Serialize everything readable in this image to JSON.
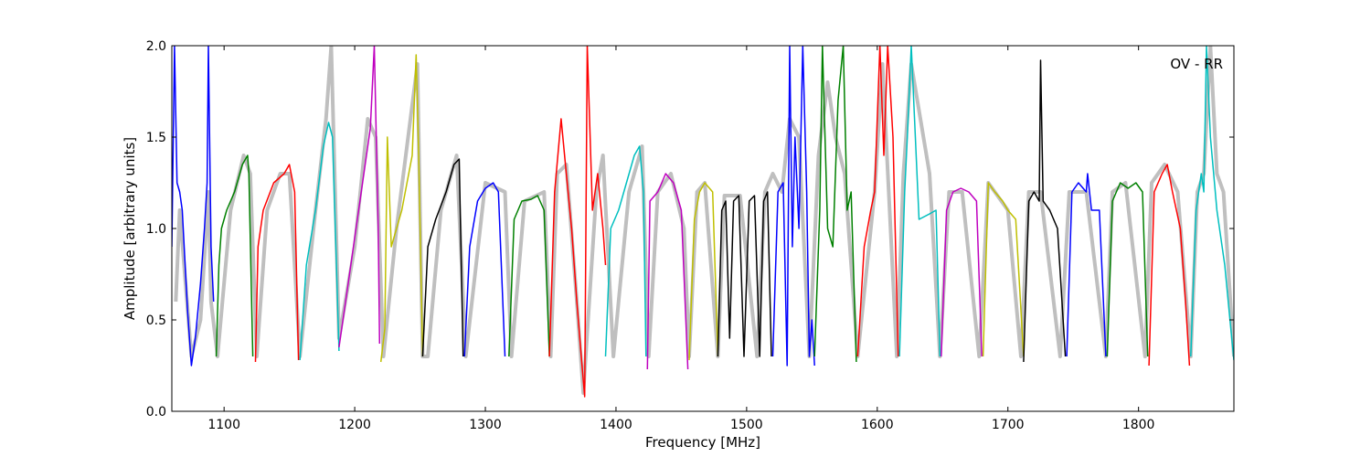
{
  "chart_data": {
    "type": "line",
    "title": "",
    "xlabel": "Frequency [MHz]",
    "ylabel": "Amplitude [arbitrary units]",
    "annotation": "OV - RR",
    "annotation_position": "top-right",
    "xlim": [
      1060,
      1873
    ],
    "ylim": [
      0.0,
      2.0
    ],
    "xticks": [
      1100,
      1200,
      1300,
      1400,
      1500,
      1600,
      1700,
      1800
    ],
    "yticks": [
      0.0,
      0.5,
      1.0,
      1.5,
      2.0
    ],
    "ytick_labels": [
      "0.0",
      "0.5",
      "1.0",
      "1.5",
      "2.0"
    ],
    "grid": false,
    "legend": "none",
    "background_series": {
      "color": "#bfbfbf",
      "x": [
        1063,
        1066,
        1075,
        1082,
        1088,
        1090,
        1095,
        1105,
        1115,
        1120,
        1125,
        1133,
        1143,
        1150,
        1158,
        1170,
        1178,
        1182,
        1188,
        1200,
        1210,
        1216,
        1222,
        1232,
        1248,
        1252,
        1256,
        1266,
        1278,
        1285,
        1300,
        1315,
        1320,
        1330,
        1345,
        1350,
        1355,
        1362,
        1370,
        1375,
        1385,
        1390,
        1398,
        1410,
        1420,
        1425,
        1432,
        1442,
        1452,
        1456,
        1462,
        1468,
        1478,
        1483,
        1495,
        1508,
        1514,
        1520,
        1527,
        1533,
        1540,
        1548,
        1555,
        1562,
        1568,
        1575,
        1585,
        1598,
        1604,
        1615,
        1620,
        1626,
        1640,
        1648,
        1655,
        1665,
        1678,
        1685,
        1700,
        1710,
        1716,
        1725,
        1740,
        1747,
        1760,
        1775,
        1780,
        1790,
        1805,
        1810,
        1820,
        1830,
        1840,
        1845,
        1850,
        1855,
        1860,
        1865,
        1873
      ],
      "y": [
        0.6,
        1.1,
        0.3,
        0.5,
        1.2,
        0.6,
        0.3,
        1.1,
        1.4,
        1.3,
        0.3,
        1.1,
        1.3,
        1.3,
        0.3,
        1.1,
        1.6,
        2.0,
        0.4,
        0.9,
        1.6,
        1.5,
        0.3,
        1.0,
        1.9,
        0.3,
        0.3,
        1.1,
        1.4,
        0.3,
        1.25,
        1.2,
        0.3,
        1.15,
        1.2,
        0.3,
        1.3,
        1.35,
        0.6,
        0.1,
        1.2,
        1.4,
        0.3,
        1.2,
        1.45,
        0.3,
        1.2,
        1.3,
        1.0,
        0.3,
        1.2,
        1.25,
        0.3,
        1.18,
        1.18,
        0.3,
        1.2,
        1.3,
        1.2,
        1.6,
        1.5,
        0.3,
        1.4,
        1.8,
        1.5,
        1.3,
        0.3,
        1.2,
        1.9,
        0.3,
        1.3,
        1.9,
        1.3,
        0.3,
        1.2,
        1.2,
        0.3,
        1.25,
        1.1,
        0.3,
        1.2,
        1.2,
        0.3,
        1.2,
        1.2,
        0.3,
        1.2,
        1.25,
        0.3,
        1.25,
        1.35,
        1.2,
        0.3,
        1.2,
        1.3,
        2.0,
        1.3,
        1.2,
        0.3
      ]
    },
    "series": [
      {
        "color": "#0000ff",
        "x": [
          1060,
          1062,
          1064,
          1066,
          1068,
          1072,
          1075,
          1078,
          1082,
          1085,
          1087,
          1088,
          1090,
          1092
        ],
        "y": [
          0.9,
          2.0,
          1.25,
          1.2,
          1.1,
          0.55,
          0.25,
          0.4,
          0.7,
          1.0,
          1.25,
          2.0,
          0.9,
          0.6
        ]
      },
      {
        "color": "#008000",
        "x": [
          1094,
          1096,
          1098,
          1102,
          1108,
          1114,
          1118,
          1119,
          1122
        ],
        "y": [
          0.3,
          0.8,
          1.0,
          1.1,
          1.2,
          1.35,
          1.4,
          1.3,
          0.3
        ]
      },
      {
        "color": "#ff0000",
        "x": [
          1124,
          1126,
          1130,
          1138,
          1146,
          1150,
          1154,
          1157
        ],
        "y": [
          0.27,
          0.9,
          1.1,
          1.25,
          1.3,
          1.35,
          1.2,
          0.28
        ]
      },
      {
        "color": "#00bfbf",
        "x": [
          1158,
          1163,
          1170,
          1176,
          1180,
          1183,
          1186,
          1188
        ],
        "y": [
          0.28,
          0.8,
          1.1,
          1.45,
          1.58,
          1.5,
          0.8,
          0.33
        ]
      },
      {
        "color": "#bf00bf",
        "x": [
          1188,
          1193,
          1200,
          1207,
          1212,
          1215,
          1218,
          1219
        ],
        "y": [
          0.35,
          0.6,
          0.95,
          1.3,
          1.55,
          2.0,
          1.0,
          0.37
        ]
      },
      {
        "color": "#bfbf00",
        "x": [
          1220,
          1223,
          1225,
          1228,
          1236,
          1244,
          1247,
          1249,
          1252
        ],
        "y": [
          0.27,
          0.45,
          1.5,
          0.9,
          1.1,
          1.4,
          1.95,
          1.4,
          0.3
        ]
      },
      {
        "color": "#000000",
        "x": [
          1252,
          1256,
          1262,
          1270,
          1276,
          1280,
          1283
        ],
        "y": [
          0.3,
          0.9,
          1.05,
          1.2,
          1.35,
          1.38,
          0.3
        ]
      },
      {
        "color": "#0000ff",
        "x": [
          1284,
          1288,
          1294,
          1300,
          1306,
          1310,
          1315
        ],
        "y": [
          0.3,
          0.9,
          1.15,
          1.22,
          1.25,
          1.2,
          0.3
        ]
      },
      {
        "color": "#008000",
        "x": [
          1318,
          1322,
          1328,
          1335,
          1340,
          1345,
          1349
        ],
        "y": [
          0.3,
          1.05,
          1.15,
          1.16,
          1.18,
          1.1,
          0.3
        ]
      },
      {
        "color": "#ff0000",
        "x": [
          1349,
          1353,
          1358,
          1362,
          1366,
          1370,
          1374,
          1376,
          1378,
          1382,
          1386,
          1390,
          1392
        ],
        "y": [
          0.3,
          1.2,
          1.6,
          1.3,
          1.0,
          0.6,
          0.25,
          0.08,
          2.0,
          1.1,
          1.3,
          1.0,
          0.8
        ]
      },
      {
        "color": "#00bfbf",
        "x": [
          1392,
          1396,
          1402,
          1408,
          1414,
          1418,
          1421,
          1423
        ],
        "y": [
          0.3,
          1.0,
          1.1,
          1.25,
          1.4,
          1.45,
          1.2,
          0.3
        ]
      },
      {
        "color": "#bf00bf",
        "x": [
          1424,
          1426,
          1432,
          1438,
          1444,
          1450,
          1455
        ],
        "y": [
          0.23,
          1.15,
          1.2,
          1.3,
          1.25,
          1.1,
          0.23
        ]
      },
      {
        "color": "#bfbf00",
        "x": [
          1456,
          1460,
          1464,
          1468,
          1474,
          1478
        ],
        "y": [
          0.28,
          1.05,
          1.2,
          1.25,
          1.2,
          0.3
        ]
      },
      {
        "color": "#000000",
        "x": [
          1478,
          1481,
          1484,
          1487,
          1490,
          1494,
          1498,
          1502,
          1506,
          1510,
          1513,
          1516,
          1519
        ],
        "y": [
          0.3,
          1.1,
          1.15,
          0.4,
          1.15,
          1.18,
          0.3,
          1.15,
          1.18,
          0.3,
          1.15,
          1.2,
          0.3
        ]
      },
      {
        "color": "#0000ff",
        "x": [
          1520,
          1524,
          1528,
          1531,
          1533,
          1535,
          1537,
          1540,
          1543,
          1546,
          1548,
          1550,
          1552
        ],
        "y": [
          0.3,
          1.2,
          1.25,
          0.25,
          2.0,
          0.9,
          1.5,
          1.0,
          2.0,
          1.2,
          0.3,
          0.5,
          0.25
        ]
      },
      {
        "color": "#008000",
        "x": [
          1552,
          1556,
          1558,
          1562,
          1566,
          1570,
          1574,
          1577,
          1580,
          1584
        ],
        "y": [
          0.3,
          1.1,
          2.0,
          1.0,
          0.9,
          1.7,
          2.0,
          1.1,
          1.2,
          0.27
        ]
      },
      {
        "color": "#ff0000",
        "x": [
          1585,
          1590,
          1595,
          1598,
          1602,
          1605,
          1608,
          1612,
          1616
        ],
        "y": [
          0.3,
          0.9,
          1.1,
          1.2,
          2.0,
          1.4,
          2.0,
          1.5,
          0.3
        ]
      },
      {
        "color": "#00bfbf",
        "x": [
          1617,
          1621,
          1623,
          1626,
          1632,
          1640,
          1645,
          1648
        ],
        "y": [
          0.3,
          1.2,
          1.5,
          2.0,
          1.05,
          1.08,
          1.1,
          0.3
        ]
      },
      {
        "color": "#bf00bf",
        "x": [
          1649,
          1653,
          1658,
          1664,
          1670,
          1676,
          1680
        ],
        "y": [
          0.3,
          1.1,
          1.2,
          1.22,
          1.2,
          1.15,
          0.3
        ]
      },
      {
        "color": "#bfbf00",
        "x": [
          1681,
          1685,
          1690,
          1696,
          1700,
          1706,
          1712
        ],
        "y": [
          0.3,
          1.25,
          1.2,
          1.15,
          1.1,
          1.05,
          0.3
        ]
      },
      {
        "color": "#000000",
        "x": [
          1712,
          1716,
          1720,
          1724,
          1725,
          1727,
          1732,
          1738,
          1744
        ],
        "y": [
          0.27,
          1.15,
          1.2,
          1.15,
          1.92,
          1.15,
          1.1,
          1.0,
          0.3
        ]
      },
      {
        "color": "#0000ff",
        "x": [
          1745,
          1749,
          1754,
          1760,
          1761,
          1764,
          1770,
          1775
        ],
        "y": [
          0.3,
          1.2,
          1.25,
          1.2,
          1.3,
          1.1,
          1.1,
          0.3
        ]
      },
      {
        "color": "#008000",
        "x": [
          1776,
          1780,
          1786,
          1792,
          1798,
          1803,
          1807
        ],
        "y": [
          0.3,
          1.15,
          1.25,
          1.22,
          1.25,
          1.2,
          0.3
        ]
      },
      {
        "color": "#ff0000",
        "x": [
          1808,
          1812,
          1818,
          1822,
          1826,
          1832,
          1836,
          1839
        ],
        "y": [
          0.25,
          1.2,
          1.3,
          1.35,
          1.2,
          1.0,
          0.6,
          0.25
        ]
      },
      {
        "color": "#00bfbf",
        "x": [
          1840,
          1844,
          1848,
          1850,
          1852,
          1855,
          1860,
          1866,
          1870,
          1873
        ],
        "y": [
          0.3,
          1.1,
          1.3,
          1.2,
          2.0,
          1.5,
          1.1,
          0.8,
          0.5,
          0.28
        ]
      }
    ]
  }
}
